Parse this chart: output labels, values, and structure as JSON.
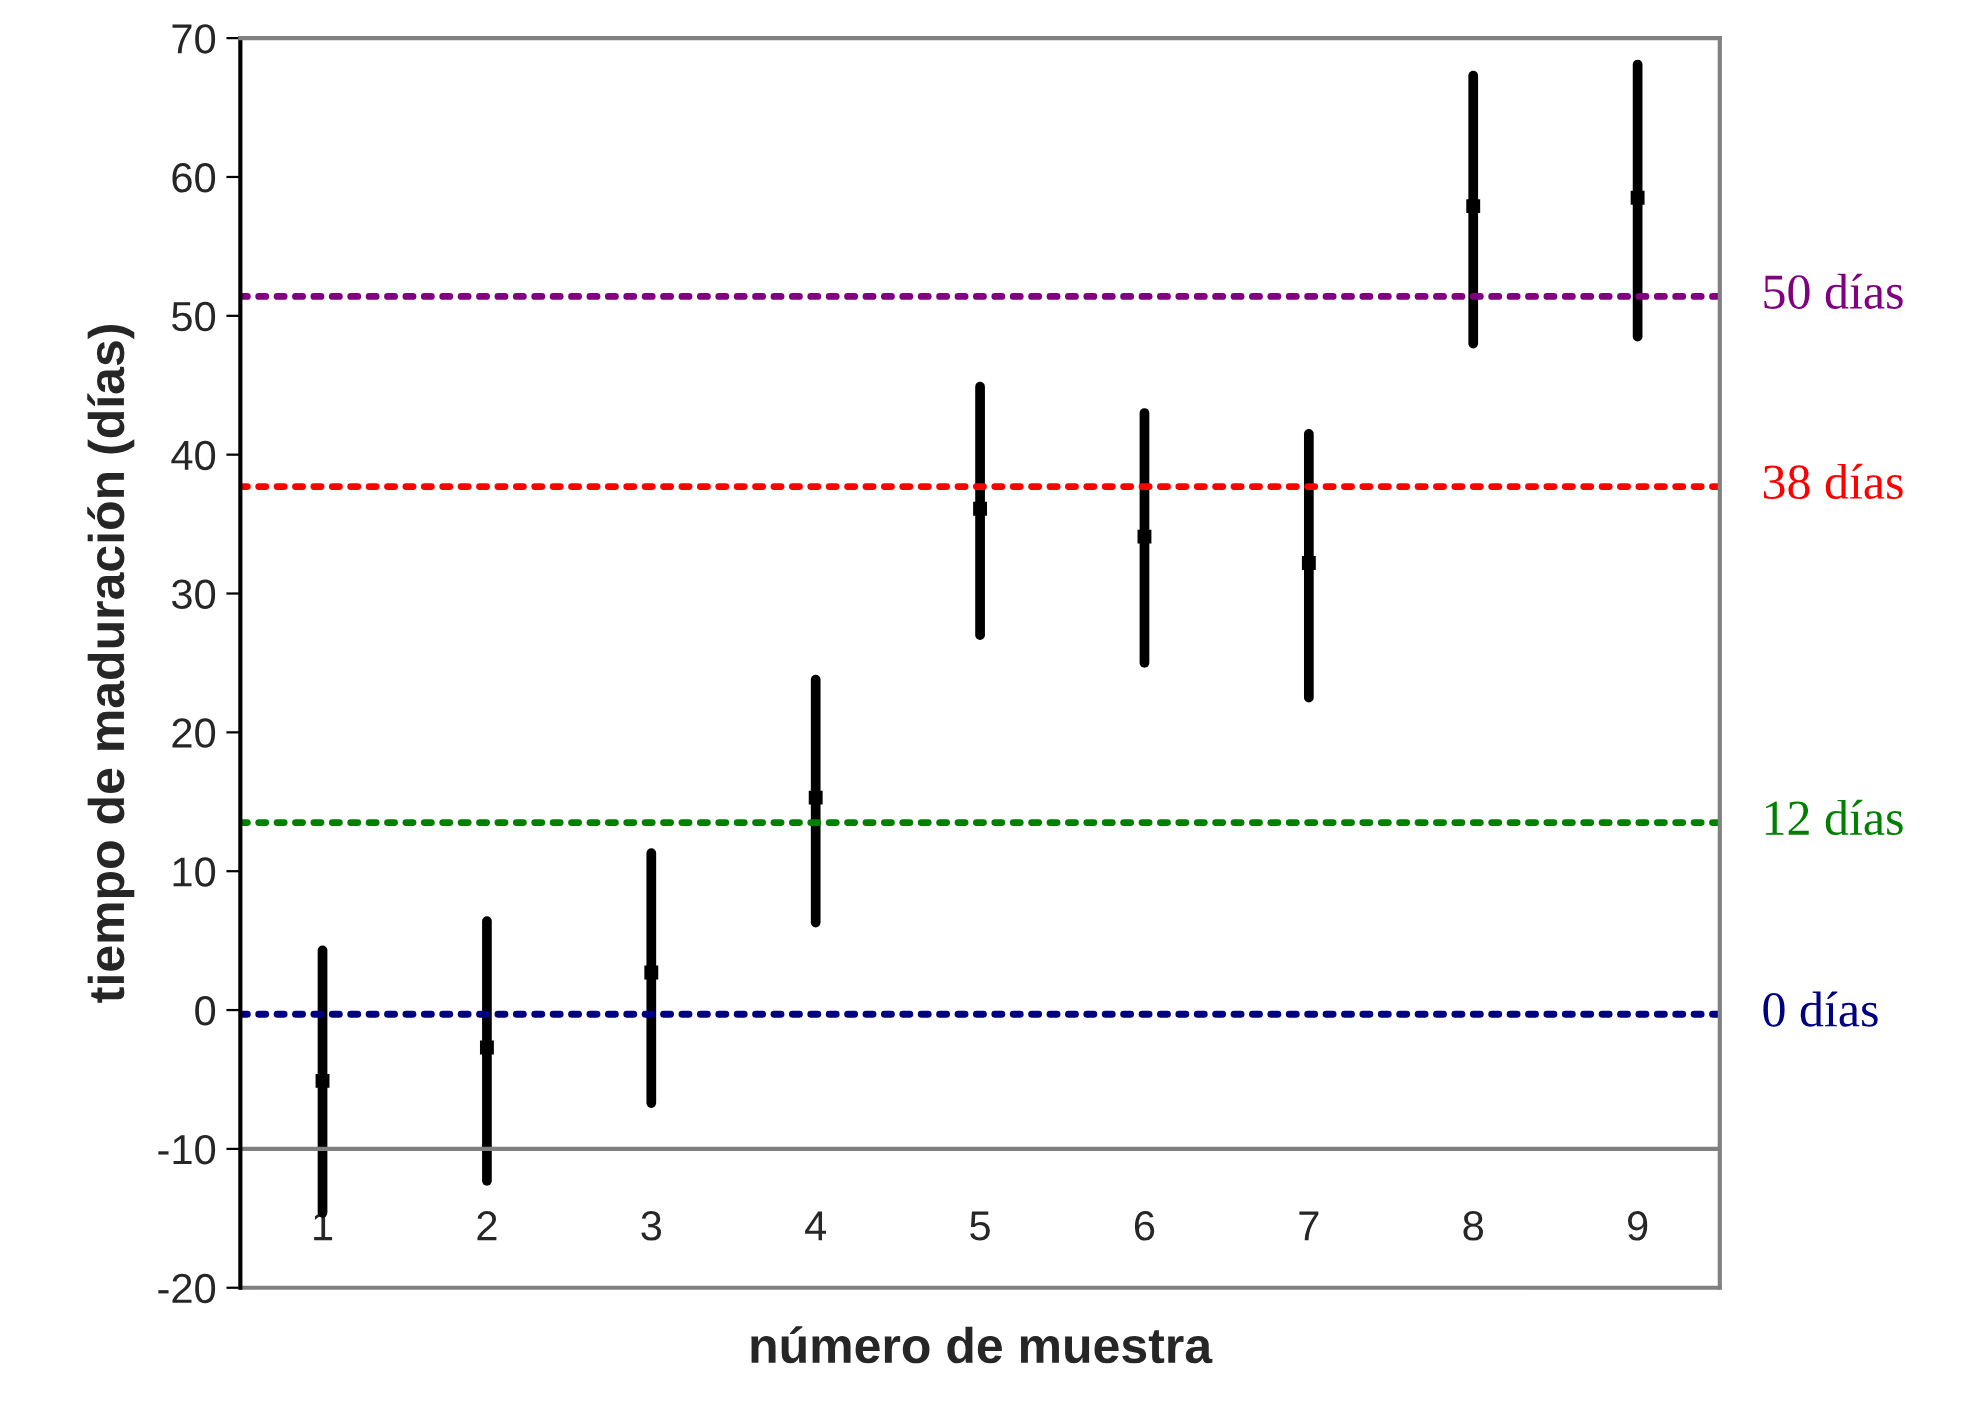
{
  "chart_data": {
    "type": "scatter",
    "xlabel": "número de muestra",
    "ylabel": "tiempo de maduración (días)",
    "categories": [
      "1",
      "2",
      "3",
      "4",
      "5",
      "6",
      "7",
      "8",
      "9"
    ],
    "series": [
      {
        "color": "#000000",
        "values": [
          -5.1,
          -2.7,
          2.7,
          15.3,
          36.1,
          34.1,
          32.2,
          57.9,
          58.5
        ],
        "errors": [
          [
            -14.6,
            4.3
          ],
          [
            -12.3,
            6.4
          ],
          [
            -6.7,
            11.3
          ],
          [
            6.3,
            23.8
          ],
          [
            27.0,
            44.9
          ],
          [
            25.0,
            43.0
          ],
          [
            22.5,
            41.5
          ],
          [
            48.0,
            67.3
          ],
          [
            48.5,
            68.1
          ]
        ]
      }
    ],
    "marker": "square",
    "ylim": [
      -20,
      70
    ],
    "yticks": [
      -20,
      -10,
      0,
      10,
      20,
      30,
      40,
      50,
      60,
      70
    ],
    "ref_lines": [
      {
        "axis": "y",
        "value": 51.4,
        "label": "50 días",
        "color": "#800080",
        "line_style": "dotted"
      },
      {
        "axis": "y",
        "value": 37.7,
        "label": "38 días",
        "color": "#ff0000",
        "line_style": "dotted"
      },
      {
        "axis": "y",
        "value": 13.5,
        "label": "12 días",
        "color": "#008000",
        "line_style": "dotted"
      },
      {
        "axis": "y",
        "value": -0.3,
        "label": "0 días",
        "color": "#000080",
        "line_style": "dotted"
      },
      {
        "axis": "y",
        "value": -10,
        "color": "#808080",
        "line_style": "solid"
      }
    ],
    "grid": false,
    "legend": false
  }
}
